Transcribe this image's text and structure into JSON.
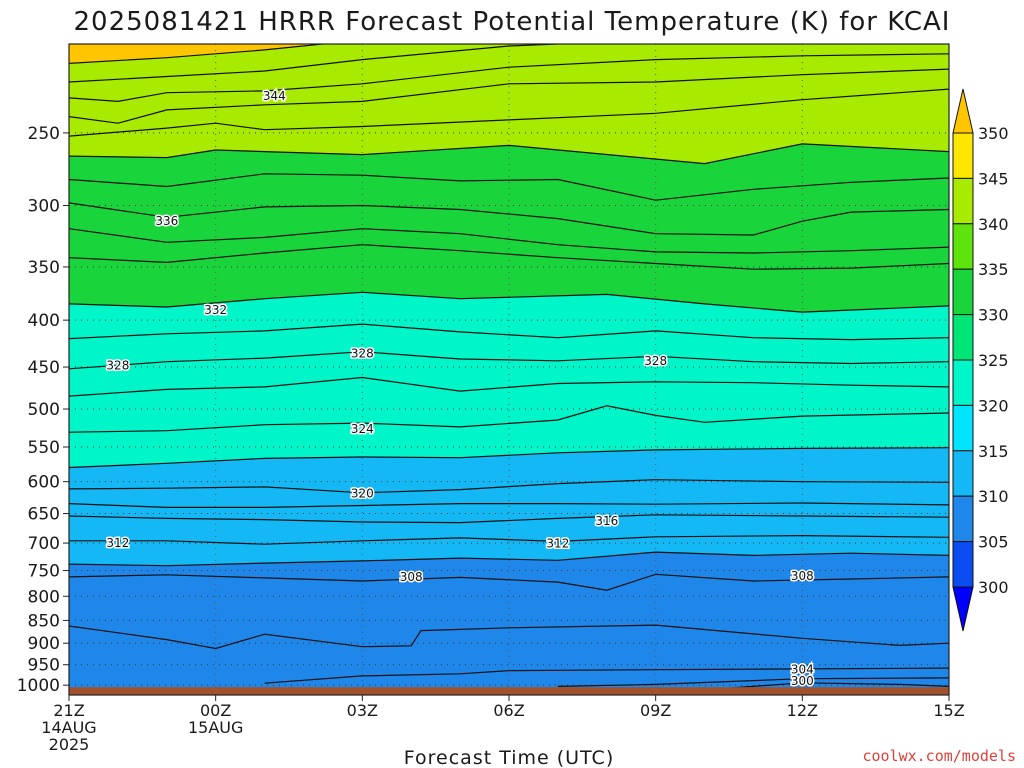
{
  "chart_data": {
    "type": "contour",
    "title": "2025081421 HRRR Forecast Potential Temperature (K) for KCAI",
    "xlabel": "Forecast Time (UTC)",
    "ylabel": "",
    "y_scale": "log",
    "y_inverted": true,
    "y_range_hpa": [
      1025,
      200
    ],
    "y_ticks": [
      "250",
      "300",
      "350",
      "400",
      "450",
      "500",
      "550",
      "600",
      "650",
      "700",
      "750",
      "800",
      "850",
      "900",
      "950",
      "1000"
    ],
    "x_range_hours": [
      0,
      18
    ],
    "x_ticks": [
      {
        "hour": 0,
        "lines": [
          "21Z",
          "14AUG",
          "2025"
        ]
      },
      {
        "hour": 3,
        "lines": [
          "00Z",
          "15AUG"
        ]
      },
      {
        "hour": 6,
        "lines": [
          "03Z"
        ]
      },
      {
        "hour": 9,
        "lines": [
          "06Z"
        ]
      },
      {
        "hour": 12,
        "lines": [
          "09Z"
        ]
      },
      {
        "hour": 15,
        "lines": [
          "12Z"
        ]
      },
      {
        "hour": 18,
        "lines": [
          "15Z"
        ]
      }
    ],
    "grid": true,
    "legend": "right colorbar",
    "colorbar": {
      "levels": [
        300,
        305,
        310,
        315,
        320,
        325,
        330,
        335,
        340,
        345,
        350
      ],
      "labels": [
        "300",
        "305",
        "310",
        "315",
        "320",
        "325",
        "330",
        "335",
        "340",
        "345",
        "350"
      ],
      "colors": [
        "#0000ff",
        "#0a4ef2",
        "#1f86ea",
        "#13b8f5",
        "#00e5ff",
        "#00f5c8",
        "#00e676",
        "#19d43a",
        "#5ee30c",
        "#a8ea00",
        "#ffe600",
        "#ffc600"
      ]
    },
    "contour_interval": 2,
    "contour_labels": [
      {
        "value": "344",
        "hour": 4.2,
        "p": 228
      },
      {
        "value": "336",
        "hour": 2.0,
        "p": 312
      },
      {
        "value": "332",
        "hour": 3.0,
        "p": 390
      },
      {
        "value": "328",
        "hour": 1.0,
        "p": 448
      },
      {
        "value": "328",
        "hour": 6.0,
        "p": 435
      },
      {
        "value": "328",
        "hour": 12.0,
        "p": 443
      },
      {
        "value": "324",
        "hour": 6.0,
        "p": 526
      },
      {
        "value": "320",
        "hour": 6.0,
        "p": 618
      },
      {
        "value": "316",
        "hour": 11.0,
        "p": 662
      },
      {
        "value": "312",
        "hour": 1.0,
        "p": 700
      },
      {
        "value": "312",
        "hour": 10.0,
        "p": 701
      },
      {
        "value": "308",
        "hour": 7.0,
        "p": 762
      },
      {
        "value": "308",
        "hour": 15.0,
        "p": 760
      },
      {
        "value": "304",
        "hour": 15.0,
        "p": 961
      },
      {
        "value": "300",
        "hour": 15.0,
        "p": 990
      }
    ],
    "isentropes": [
      {
        "theta": 350,
        "pts": [
          [
            0,
            210
          ],
          [
            2,
            207
          ],
          [
            4,
            203
          ],
          [
            6,
            198
          ],
          [
            9,
            194
          ],
          [
            12,
            192
          ],
          [
            15,
            192
          ],
          [
            18,
            192
          ]
        ]
      },
      {
        "theta": 348,
        "pts": [
          [
            0,
            220
          ],
          [
            2,
            217
          ],
          [
            4,
            214
          ],
          [
            6,
            208
          ],
          [
            9,
            201
          ],
          [
            12,
            198
          ],
          [
            15,
            197
          ],
          [
            18,
            196
          ]
        ]
      },
      {
        "theta": 346,
        "pts": [
          [
            0,
            229
          ],
          [
            1,
            231
          ],
          [
            2,
            226
          ],
          [
            4,
            225
          ],
          [
            6,
            221
          ],
          [
            9,
            212
          ],
          [
            12,
            208
          ],
          [
            15,
            206
          ],
          [
            18,
            205
          ]
        ]
      },
      {
        "theta": 344,
        "pts": [
          [
            0,
            240
          ],
          [
            1,
            244
          ],
          [
            2,
            236
          ],
          [
            4,
            233
          ],
          [
            6,
            231
          ],
          [
            9,
            221
          ],
          [
            12,
            220
          ],
          [
            15,
            216
          ],
          [
            18,
            213
          ]
        ]
      },
      {
        "theta": 342,
        "pts": [
          [
            0,
            252
          ],
          [
            2,
            247
          ],
          [
            3,
            244
          ],
          [
            4,
            248
          ],
          [
            6,
            246
          ],
          [
            9,
            242
          ],
          [
            12,
            238
          ],
          [
            15,
            230
          ],
          [
            18,
            224
          ]
        ]
      },
      {
        "theta": 340,
        "pts": [
          [
            0,
            265
          ],
          [
            2,
            266
          ],
          [
            3,
            261
          ],
          [
            4,
            262
          ],
          [
            6,
            264
          ],
          [
            9,
            258
          ],
          [
            13,
            270
          ],
          [
            15,
            257
          ],
          [
            18,
            262
          ]
        ]
      },
      {
        "theta": 338,
        "pts": [
          [
            0,
            281
          ],
          [
            2,
            286
          ],
          [
            4,
            277
          ],
          [
            6,
            278
          ],
          [
            8,
            282
          ],
          [
            10,
            281
          ],
          [
            12,
            296
          ],
          [
            14,
            288
          ],
          [
            16,
            283
          ],
          [
            18,
            280
          ]
        ]
      },
      {
        "theta": 336,
        "pts": [
          [
            0,
            298
          ],
          [
            2,
            309
          ],
          [
            4,
            301
          ],
          [
            6,
            300
          ],
          [
            8,
            303
          ],
          [
            10,
            310
          ],
          [
            12,
            322
          ],
          [
            14,
            323
          ],
          [
            15,
            312
          ],
          [
            16,
            305
          ],
          [
            18,
            303
          ]
        ]
      },
      {
        "theta": 334,
        "pts": [
          [
            0,
            318
          ],
          [
            2,
            329
          ],
          [
            4,
            325
          ],
          [
            6,
            318
          ],
          [
            8,
            322
          ],
          [
            10,
            331
          ],
          [
            12,
            337
          ],
          [
            14,
            338
          ],
          [
            16,
            336
          ],
          [
            18,
            333
          ]
        ]
      },
      {
        "theta": 332,
        "pts": [
          [
            0,
            342
          ],
          [
            2,
            346
          ],
          [
            4,
            338
          ],
          [
            6,
            331
          ],
          [
            8,
            336
          ],
          [
            10,
            342
          ],
          [
            12,
            347
          ],
          [
            14,
            352
          ],
          [
            16,
            351
          ],
          [
            18,
            347
          ]
        ]
      },
      {
        "theta": 330,
        "pts": [
          [
            0,
            384
          ],
          [
            2,
            387
          ],
          [
            4,
            379
          ],
          [
            6,
            373
          ],
          [
            8,
            379
          ],
          [
            11,
            375
          ],
          [
            13,
            384
          ],
          [
            15,
            392
          ],
          [
            18,
            386
          ]
        ]
      },
      {
        "theta": 328,
        "pts": [
          [
            0,
            419
          ],
          [
            2,
            414
          ],
          [
            4,
            411
          ],
          [
            6,
            404
          ],
          [
            8,
            412
          ],
          [
            10,
            418
          ],
          [
            12,
            411
          ],
          [
            14,
            418
          ],
          [
            16,
            420
          ],
          [
            18,
            418
          ]
        ]
      },
      {
        "theta": 326,
        "pts": [
          [
            0,
            452
          ],
          [
            2,
            444
          ],
          [
            4,
            440
          ],
          [
            6,
            433
          ],
          [
            8,
            441
          ],
          [
            10,
            443
          ],
          [
            12,
            438
          ],
          [
            14,
            444
          ],
          [
            16,
            446
          ],
          [
            18,
            444
          ]
        ]
      },
      {
        "theta": 324,
        "pts": [
          [
            0,
            484
          ],
          [
            2,
            476
          ],
          [
            4,
            473
          ],
          [
            6,
            462
          ],
          [
            8,
            478
          ],
          [
            10,
            469
          ],
          [
            12,
            467
          ],
          [
            14,
            468
          ],
          [
            16,
            471
          ],
          [
            18,
            473
          ]
        ]
      },
      {
        "theta": 322,
        "pts": [
          [
            0,
            530
          ],
          [
            2,
            528
          ],
          [
            4,
            520
          ],
          [
            6,
            518
          ],
          [
            8,
            523
          ],
          [
            10,
            514
          ],
          [
            11,
            496
          ],
          [
            12,
            508
          ],
          [
            13,
            517
          ],
          [
            15,
            509
          ],
          [
            18,
            505
          ]
        ]
      },
      {
        "theta": 320,
        "pts": [
          [
            0,
            579
          ],
          [
            2,
            573
          ],
          [
            4,
            566
          ],
          [
            6,
            564
          ],
          [
            8,
            565
          ],
          [
            10,
            558
          ],
          [
            12,
            554
          ],
          [
            15,
            552
          ],
          [
            18,
            551
          ]
        ]
      },
      {
        "theta": 318,
        "pts": [
          [
            0,
            611
          ],
          [
            2,
            610
          ],
          [
            4,
            608
          ],
          [
            6,
            617
          ],
          [
            8,
            612
          ],
          [
            10,
            603
          ],
          [
            12,
            597
          ],
          [
            15,
            600
          ],
          [
            18,
            601
          ]
        ]
      },
      {
        "theta": 316,
        "pts": [
          [
            0,
            634
          ],
          [
            2,
            640
          ],
          [
            4,
            640
          ],
          [
            6,
            637
          ],
          [
            8,
            634
          ],
          [
            10,
            634
          ],
          [
            12,
            635
          ],
          [
            15,
            633
          ],
          [
            18,
            636
          ]
        ]
      },
      {
        "theta": 314,
        "pts": [
          [
            0,
            654
          ],
          [
            2,
            658
          ],
          [
            4,
            660
          ],
          [
            6,
            664
          ],
          [
            8,
            665
          ],
          [
            10,
            658
          ],
          [
            12,
            652
          ],
          [
            15,
            654
          ],
          [
            18,
            656
          ]
        ]
      },
      {
        "theta": 312,
        "pts": [
          [
            0,
            696
          ],
          [
            2,
            696
          ],
          [
            4,
            702
          ],
          [
            6,
            696
          ],
          [
            8,
            691
          ],
          [
            10,
            697
          ],
          [
            12,
            689
          ],
          [
            15,
            687
          ],
          [
            18,
            690
          ]
        ]
      },
      {
        "theta": 310,
        "pts": [
          [
            0,
            738
          ],
          [
            2,
            741
          ],
          [
            4,
            736
          ],
          [
            6,
            732
          ],
          [
            8,
            727
          ],
          [
            10,
            731
          ],
          [
            12,
            716
          ],
          [
            14,
            722
          ],
          [
            16,
            718
          ],
          [
            18,
            722
          ]
        ]
      },
      {
        "theta": 308,
        "pts": [
          [
            0,
            762
          ],
          [
            2,
            758
          ],
          [
            4,
            764
          ],
          [
            6,
            770
          ],
          [
            8,
            763
          ],
          [
            10,
            772
          ],
          [
            11,
            788
          ],
          [
            12,
            757
          ],
          [
            14,
            770
          ],
          [
            16,
            766
          ],
          [
            18,
            762
          ]
        ]
      },
      {
        "theta": 306,
        "pts": [
          [
            0,
            862
          ],
          [
            2,
            892
          ],
          [
            3,
            912
          ],
          [
            4,
            880
          ],
          [
            6,
            908
          ],
          [
            7,
            906
          ],
          [
            7.2,
            872
          ],
          [
            9,
            866
          ],
          [
            12,
            860
          ],
          [
            15,
            889
          ],
          [
            17,
            905
          ],
          [
            18,
            900
          ]
        ]
      },
      {
        "theta": 304,
        "pts": [
          [
            4,
            995
          ],
          [
            6,
            977
          ],
          [
            8,
            972
          ],
          [
            9,
            964
          ],
          [
            12,
            962
          ],
          [
            15,
            960
          ],
          [
            18,
            958
          ]
        ]
      },
      {
        "theta": 302,
        "pts": [
          [
            10,
            1003
          ],
          [
            12,
            998
          ],
          [
            15,
            984
          ],
          [
            18,
            982
          ]
        ]
      },
      {
        "theta": 300,
        "pts": [
          [
            13,
            1012
          ],
          [
            15,
            994
          ],
          [
            17,
            998
          ],
          [
            18,
            1003
          ]
        ]
      }
    ],
    "surface_layer": {
      "label": "ground",
      "top_p": 1005,
      "color": "#a0522d"
    }
  },
  "credit": "coolwx.com/models"
}
